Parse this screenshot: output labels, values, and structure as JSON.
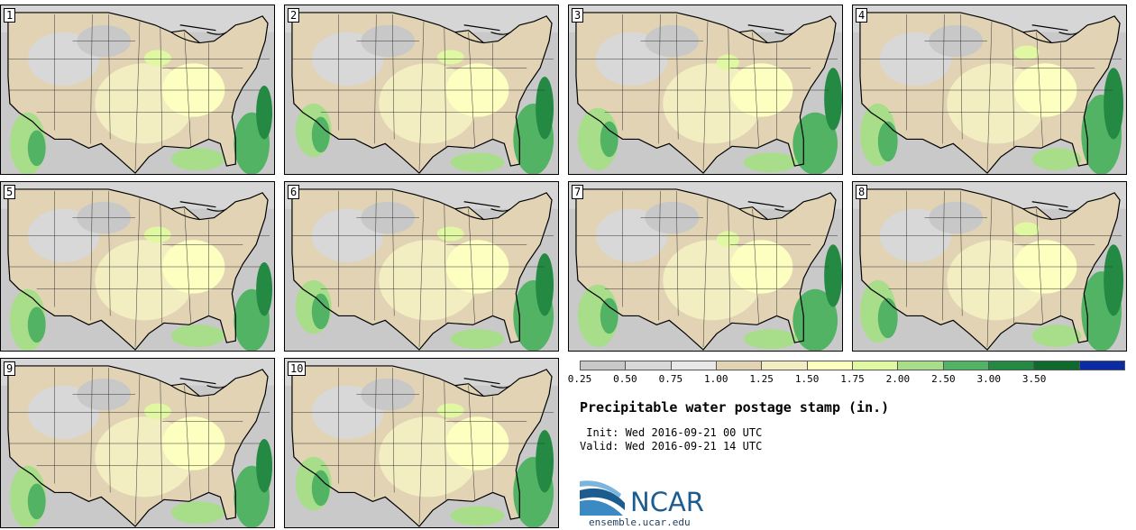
{
  "panels": [
    {
      "label": "1"
    },
    {
      "label": "2"
    },
    {
      "label": "3"
    },
    {
      "label": "4"
    },
    {
      "label": "5"
    },
    {
      "label": "6"
    },
    {
      "label": "7"
    },
    {
      "label": "8"
    },
    {
      "label": "9"
    },
    {
      "label": "10"
    }
  ],
  "colorbar": {
    "colors": [
      "#c8c8c8",
      "#d8d8d8",
      "#e8e8e8",
      "#e1d3b3",
      "#f3eec2",
      "#fcffc0",
      "#e1f8a3",
      "#a8dd8a",
      "#52b365",
      "#248a43",
      "#0f6b2d",
      "#0b2aa6"
    ],
    "ticks": [
      "0.25",
      "0.50",
      "0.75",
      "1.00",
      "1.25",
      "1.50",
      "1.75",
      "2.00",
      "2.50",
      "3.00",
      "3.50"
    ]
  },
  "title": "Precipitable water postage stamp (in.)",
  "init": " Init: Wed 2016-09-21 00 UTC",
  "valid": "Valid: Wed 2016-09-21 14 UTC",
  "logo": {
    "text": "NCAR",
    "site": "ensemble.ucar.edu",
    "color": "#1d5c8e"
  }
}
